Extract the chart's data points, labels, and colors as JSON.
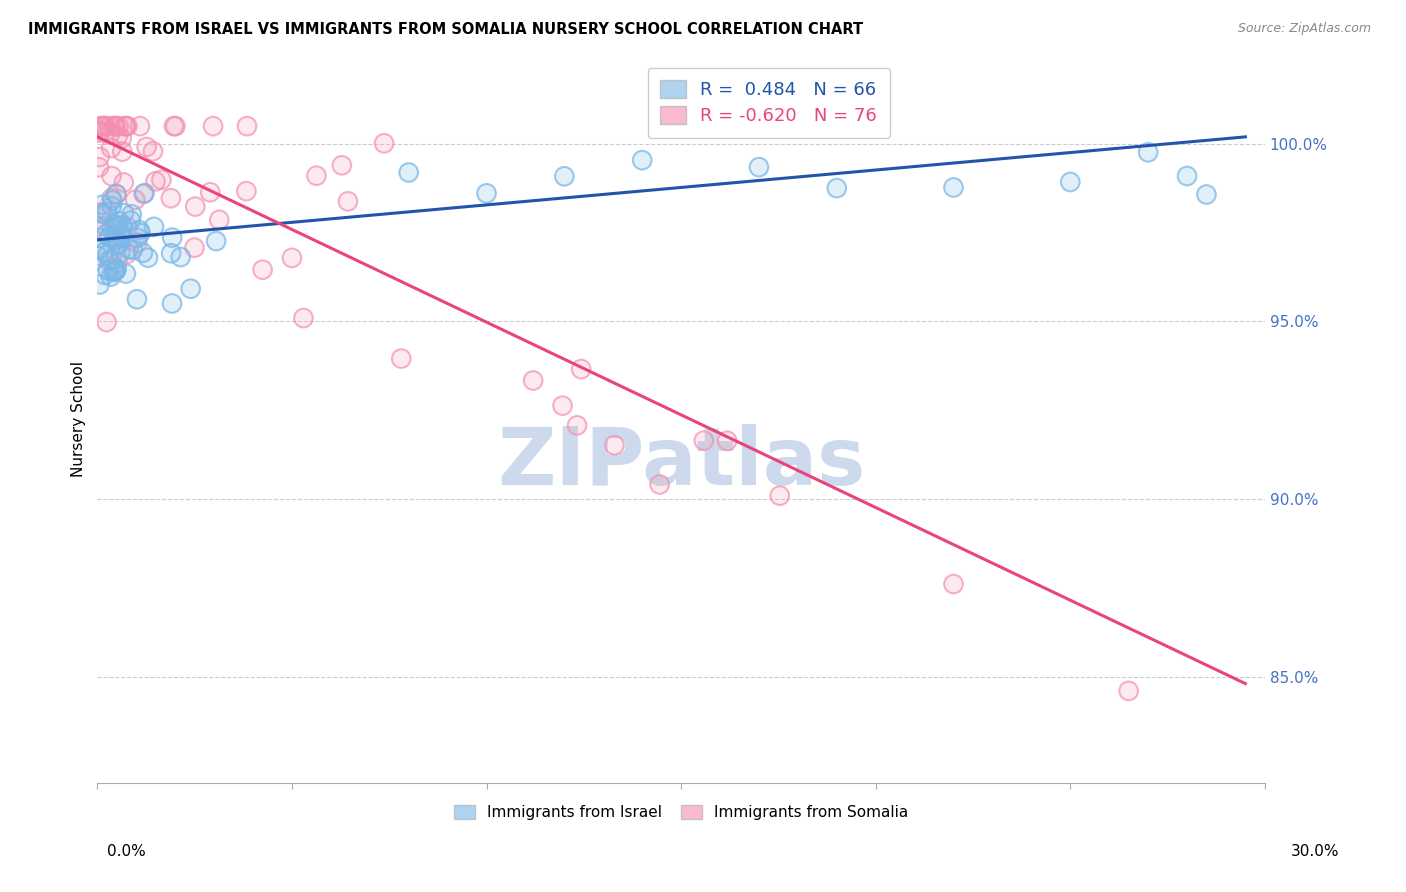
{
  "title": "IMMIGRANTS FROM ISRAEL VS IMMIGRANTS FROM SOMALIA NURSERY SCHOOL CORRELATION CHART",
  "source": "Source: ZipAtlas.com",
  "ylabel": "Nursery School",
  "legend1_r": "0.484",
  "legend1_n": "66",
  "legend2_r": "-0.620",
  "legend2_n": "76",
  "israel_color": "#7ab8e8",
  "somalia_color": "#f48fb1",
  "israel_line_color": "#2255aa",
  "somalia_line_color": "#e8457a",
  "xlim": [
    0.0,
    0.3
  ],
  "ylim": [
    0.82,
    1.025
  ],
  "background_color": "#ffffff",
  "grid_color": "#cccccc",
  "watermark_text": "ZIPatlas",
  "watermark_color": "#cdd9ec",
  "right_axis_color": "#4472c4",
  "ytick_values": [
    1.0,
    0.95,
    0.9,
    0.85
  ],
  "ytick_labels": [
    "100.0%",
    "95.0%",
    "90.0%",
    "85.0%"
  ]
}
